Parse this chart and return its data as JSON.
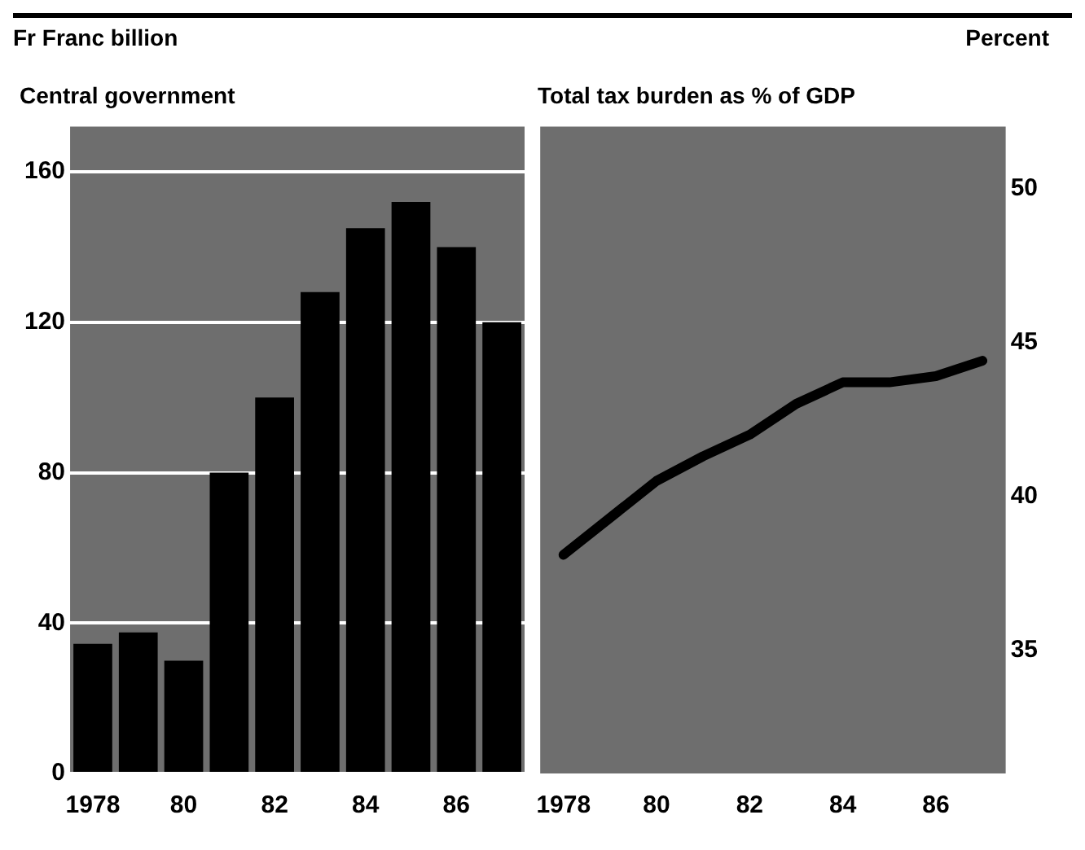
{
  "chart_data": [
    {
      "type": "bar",
      "title": "Central government",
      "ylabel": "Fr Franc billion",
      "categories": [
        "1978",
        null,
        "80",
        null,
        "82",
        null,
        "84",
        null,
        "86",
        null
      ],
      "values": [
        34.5,
        37.5,
        30,
        80,
        100,
        128,
        145,
        152,
        140,
        120
      ],
      "color": "#000000",
      "ylim": [
        0,
        172
      ],
      "yticks": [
        0,
        40,
        80,
        120,
        160
      ],
      "grid": "y",
      "legend": false
    },
    {
      "type": "line",
      "title": "Total tax burden as % of GDP",
      "y2label": "Percent",
      "categories": [
        "1978",
        null,
        "80",
        null,
        "82",
        null,
        "84",
        null,
        "86",
        null
      ],
      "series": [
        {
          "color": "#000000",
          "values": [
            38.1,
            39.3,
            40.5,
            41.3,
            42,
            43,
            43.7,
            43.7,
            43.9,
            44.4
          ],
          "axis": "y2"
        }
      ],
      "y2lim": [
        31,
        52
      ],
      "y2ticks": [
        35,
        40,
        45,
        50
      ],
      "grid": false,
      "legend": false,
      "marker": "none",
      "line_style": "solid"
    }
  ]
}
